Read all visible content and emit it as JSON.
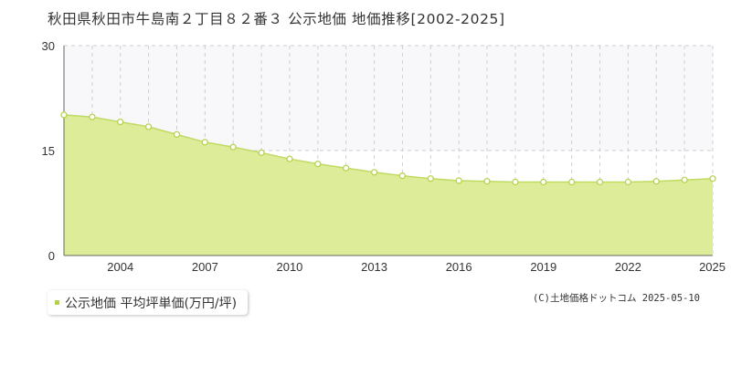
{
  "title": "秋田県秋田市牛島南２丁目８２番３ 公示地価 地価推移[2002-2025]",
  "legend": {
    "label": "公示地価 平均坪単価(万円/坪)"
  },
  "copyright": "(C)土地価格ドットコム 2025-05-10",
  "colors": {
    "area_fill": "#dcec98",
    "line": "#bfdb62",
    "marker_fill": "#ffffff",
    "marker_stroke": "#b3d145",
    "band_fill": "#f8f7f9",
    "grid_dashed": "#cfcfcf",
    "axis": "#666666"
  },
  "chart_data": {
    "type": "area",
    "x": [
      2002,
      2003,
      2004,
      2005,
      2006,
      2007,
      2008,
      2009,
      2010,
      2011,
      2012,
      2013,
      2014,
      2015,
      2016,
      2017,
      2018,
      2019,
      2020,
      2021,
      2022,
      2023,
      2024,
      2025
    ],
    "series": [
      {
        "name": "公示地価 平均坪単価(万円/坪)",
        "values": [
          20.1,
          19.8,
          19.1,
          18.4,
          17.3,
          16.2,
          15.5,
          14.7,
          13.8,
          13.1,
          12.5,
          11.9,
          11.4,
          11.0,
          10.7,
          10.6,
          10.5,
          10.5,
          10.5,
          10.5,
          10.5,
          10.6,
          10.8,
          11.0
        ]
      }
    ],
    "xticks": [
      "2004",
      "2007",
      "2010",
      "2013",
      "2016",
      "2019",
      "2022",
      "2025"
    ],
    "yticks": [
      "0",
      "15",
      "30"
    ],
    "xlim": [
      2002,
      2025
    ],
    "ylim": [
      0,
      30
    ],
    "grid": true,
    "band": [
      15,
      30
    ],
    "legend_position": "bottom-left"
  }
}
